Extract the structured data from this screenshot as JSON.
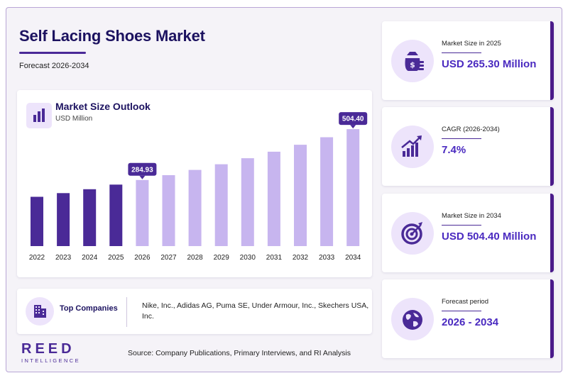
{
  "header": {
    "title": "Self Lacing Shoes Market",
    "subtitle": "Forecast 2026-2034"
  },
  "chart": {
    "title": "Market Size Outlook",
    "unit": "USD Million"
  },
  "chart_data": {
    "type": "bar",
    "title": "Market Size Outlook",
    "ylabel": "USD Million",
    "categories": [
      "2022",
      "2023",
      "2024",
      "2025",
      "2026",
      "2027",
      "2028",
      "2029",
      "2030",
      "2031",
      "2032",
      "2033",
      "2034"
    ],
    "values": [
      212.7,
      228.4,
      245.3,
      265.3,
      284.93,
      306.0,
      328.6,
      353.0,
      379.1,
      407.1,
      437.2,
      469.6,
      504.4
    ],
    "ylim": [
      0,
      520
    ],
    "historical_color": "#4a2a97",
    "forecast_color": "#c7b5ef",
    "data_labels": [
      {
        "category": "2026",
        "text": "284.93"
      },
      {
        "category": "2034",
        "text": "504.40"
      }
    ],
    "grid": false,
    "legend": "none"
  },
  "companies": {
    "label": "Top Companies",
    "list": "Nike, Inc., Adidas AG, Puma SE, Under Armour, Inc., Skechers USA, Inc."
  },
  "brand": {
    "main": "REED",
    "sub": "INTELLIGENCE"
  },
  "source": "Source: Company Publications, Primary Interviews, and RI Analysis",
  "stats": [
    {
      "label": "Market Size in 2025",
      "value": "USD 265.30 Million",
      "icon": "money-bag-icon"
    },
    {
      "label": "CAGR (2026-2034)",
      "value": "7.4%",
      "icon": "growth-chart-icon"
    },
    {
      "label": "Market Size in 2034",
      "value": "USD 504.40 Million",
      "icon": "target-icon"
    },
    {
      "label": "Forecast period",
      "value": "2026 - 2034",
      "icon": "globe-icon"
    }
  ],
  "colors": {
    "accent": "#4a2a97",
    "title": "#1c1260",
    "value": "#4a2ac0",
    "icon_bg": "#ede4fb",
    "stat_border": "#4a1a8a"
  }
}
